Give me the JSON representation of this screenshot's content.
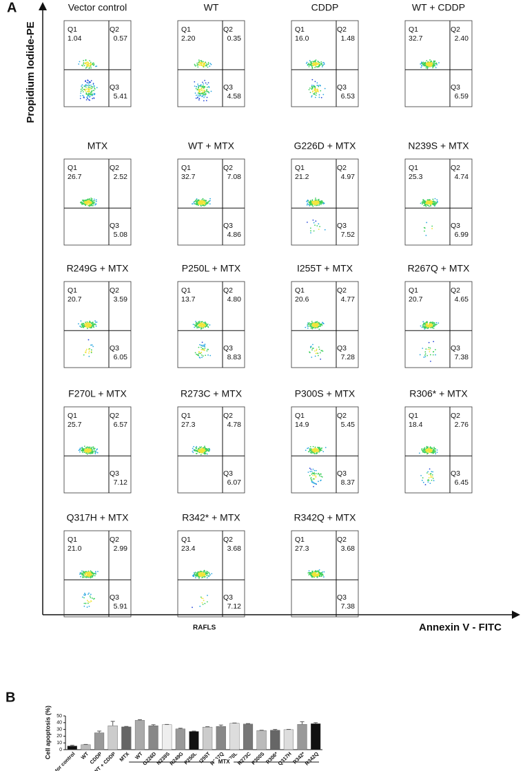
{
  "panel_a": {
    "label": "A",
    "y_label": "Propidium Iodide-PE",
    "x_label": "Annexin V - FITC",
    "sample_label": "RAFLS",
    "plots": [
      {
        "title": "Vector control",
        "quadrants": [
          {
            "name": "Q1",
            "value": "1.04"
          },
          {
            "name": "Q2",
            "value": "0.57"
          },
          {
            "name": "Q3",
            "value": "5.41"
          }
        ]
      },
      {
        "title": "WT",
        "quadrants": [
          {
            "name": "Q1",
            "value": "2.20"
          },
          {
            "name": "Q2",
            "value": "0.35"
          },
          {
            "name": "Q3",
            "value": "4.58"
          }
        ]
      },
      {
        "title": "CDDP",
        "quadrants": [
          {
            "name": "Q1",
            "value": "16.0"
          },
          {
            "name": "Q2",
            "value": "1.48"
          },
          {
            "name": "Q3",
            "value": "6.53"
          }
        ]
      },
      {
        "title": "WT + CDDP",
        "quadrants": [
          {
            "name": "Q1",
            "value": "32.7"
          },
          {
            "name": "Q2",
            "value": "2.40"
          },
          {
            "name": "Q3",
            "value": "6.59"
          }
        ]
      },
      {
        "title": "MTX",
        "quadrants": [
          {
            "name": "Q1",
            "value": "26.7"
          },
          {
            "name": "Q2",
            "value": "2.52"
          },
          {
            "name": "Q3",
            "value": "5.08"
          }
        ]
      },
      {
        "title": "WT + MTX",
        "quadrants": [
          {
            "name": "Q1",
            "value": "32.7"
          },
          {
            "name": "Q2",
            "value": "7.08"
          },
          {
            "name": "Q3",
            "value": "4.86"
          }
        ]
      },
      {
        "title": "G226D + MTX",
        "quadrants": [
          {
            "name": "Q1",
            "value": "21.2"
          },
          {
            "name": "Q2",
            "value": "4.97"
          },
          {
            "name": "Q3",
            "value": "7.52"
          }
        ]
      },
      {
        "title": "N239S + MTX",
        "quadrants": [
          {
            "name": "Q1",
            "value": "25.3"
          },
          {
            "name": "Q2",
            "value": "4.74"
          },
          {
            "name": "Q3",
            "value": "6.99"
          }
        ]
      },
      {
        "title": "R249G + MTX",
        "quadrants": [
          {
            "name": "Q1",
            "value": "20.7"
          },
          {
            "name": "Q2",
            "value": "3.59"
          },
          {
            "name": "Q3",
            "value": "6.05"
          }
        ]
      },
      {
        "title": "P250L + MTX",
        "quadrants": [
          {
            "name": "Q1",
            "value": "13.7"
          },
          {
            "name": "Q2",
            "value": "4.80"
          },
          {
            "name": "Q3",
            "value": "8.83"
          }
        ]
      },
      {
        "title": "I255T + MTX",
        "quadrants": [
          {
            "name": "Q1",
            "value": "20.6"
          },
          {
            "name": "Q2",
            "value": "4.77"
          },
          {
            "name": "Q3",
            "value": "7.28"
          }
        ]
      },
      {
        "title": "R267Q + MTX",
        "quadrants": [
          {
            "name": "Q1",
            "value": "20.7"
          },
          {
            "name": "Q2",
            "value": "4.65"
          },
          {
            "name": "Q3",
            "value": "7.38"
          }
        ]
      },
      {
        "title": "F270L + MTX",
        "quadrants": [
          {
            "name": "Q1",
            "value": "25.7"
          },
          {
            "name": "Q2",
            "value": "6.57"
          },
          {
            "name": "Q3",
            "value": "7.12"
          }
        ]
      },
      {
        "title": "R273C + MTX",
        "quadrants": [
          {
            "name": "Q1",
            "value": "27.3"
          },
          {
            "name": "Q2",
            "value": "4.78"
          },
          {
            "name": "Q3",
            "value": "6.07"
          }
        ]
      },
      {
        "title": "P300S + MTX",
        "quadrants": [
          {
            "name": "Q1",
            "value": "14.9"
          },
          {
            "name": "Q2",
            "value": "5.45"
          },
          {
            "name": "Q3",
            "value": "8.37"
          }
        ]
      },
      {
        "title": "R306* + MTX",
        "quadrants": [
          {
            "name": "Q1",
            "value": "18.4"
          },
          {
            "name": "Q2",
            "value": "2.76"
          },
          {
            "name": "Q3",
            "value": "6.45"
          }
        ]
      },
      {
        "title": "Q317H + MTX",
        "quadrants": [
          {
            "name": "Q1",
            "value": "21.0"
          },
          {
            "name": "Q2",
            "value": "2.99"
          },
          {
            "name": "Q3",
            "value": "5.91"
          }
        ]
      },
      {
        "title": "R342* + MTX",
        "quadrants": [
          {
            "name": "Q1",
            "value": "23.4"
          },
          {
            "name": "Q2",
            "value": "3.68"
          },
          {
            "name": "Q3",
            "value": "7.12"
          }
        ]
      },
      {
        "title": "R342Q + MTX",
        "quadrants": [
          {
            "name": "Q1",
            "value": "27.3"
          },
          {
            "name": "Q2",
            "value": "3.68"
          },
          {
            "name": "Q3",
            "value": "7.38"
          }
        ]
      }
    ]
  },
  "chart_data": {
    "type": "bar",
    "panel_label": "B",
    "y_label": "Cell apoptosis (%)",
    "group_label": "MTX",
    "categories": [
      "Vector control",
      "WT",
      "CDDP",
      "WT + CDDP",
      "MTX",
      "WT",
      "G226D",
      "N239S",
      "R249G",
      "P250L",
      "I255T",
      "R267Q",
      "F270L",
      "R273C",
      "P300S",
      "R306*",
      "Q317H",
      "R342*",
      "R342Q"
    ],
    "values": [
      5.5,
      7.3,
      25,
      35.5,
      33.8,
      43.5,
      35.5,
      37,
      30.8,
      27,
      33.5,
      34.5,
      39.2,
      38,
      28.3,
      28.8,
      29.7,
      37.5,
      38.5
    ],
    "errors": [
      1,
      0.5,
      2.5,
      6.5,
      0.7,
      1,
      1.5,
      0.4,
      1,
      0.6,
      0.5,
      2,
      0.3,
      0.6,
      0.5,
      1.2,
      0.4,
      4,
      1.5
    ],
    "colors": [
      "#111111",
      "#bbbbbb",
      "#999999",
      "#cccccc",
      "#666666",
      "#aaaaaa",
      "#888888",
      "#eeeeee",
      "#999999",
      "#111111",
      "#cccccc",
      "#888888",
      "#dddddd",
      "#777777",
      "#bbbbbb",
      "#666666",
      "#dddddd",
      "#999999",
      "#111111"
    ],
    "ylim": [
      0,
      50
    ],
    "yticks": [
      0,
      10,
      20,
      30,
      40,
      50
    ]
  }
}
